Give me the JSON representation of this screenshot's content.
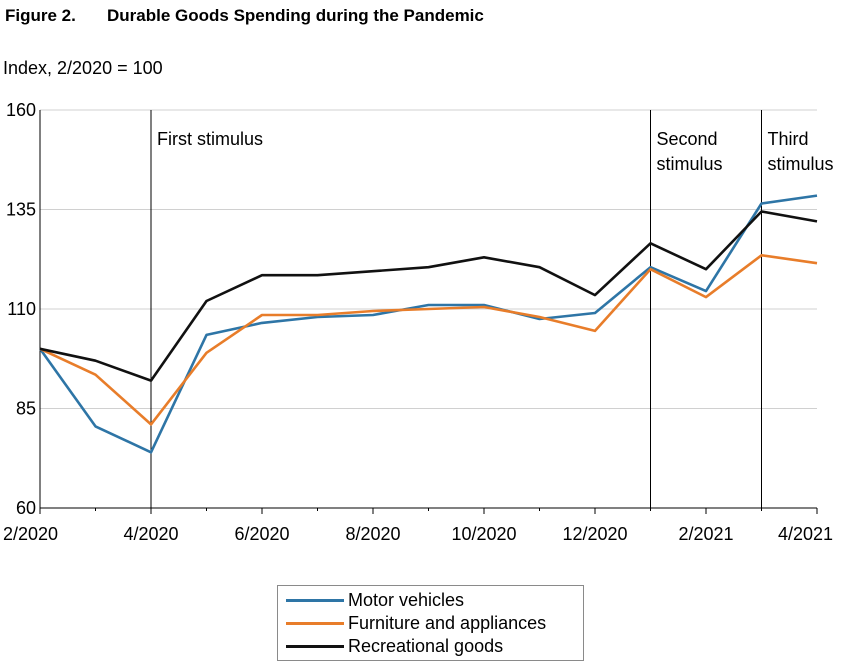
{
  "figure": {
    "number": "Figure 2.",
    "title": "Durable Goods Spending during the Pandemic",
    "unit_label": "Index, 2/2020 = 100"
  },
  "chart_data": {
    "type": "line",
    "title": "Durable Goods Spending during the Pandemic",
    "ylabel": "Index, 2/2020 = 100",
    "xlabel": "",
    "ylim": [
      60,
      160
    ],
    "yticks": [
      60,
      85,
      110,
      135,
      160
    ],
    "grid": "horizontal",
    "x": [
      "2/2020",
      "3/2020",
      "4/2020",
      "5/2020",
      "6/2020",
      "7/2020",
      "8/2020",
      "9/2020",
      "10/2020",
      "11/2020",
      "12/2020",
      "1/2021",
      "2/2021",
      "3/2021",
      "4/2021"
    ],
    "xtick_labels": [
      "2/2020",
      "4/2020",
      "6/2020",
      "8/2020",
      "10/2020",
      "12/2020",
      "2/2021",
      "4/2021"
    ],
    "series": [
      {
        "name": "Motor vehicles",
        "color": "#2e75a6",
        "values": [
          100,
          80.5,
          74,
          103.5,
          106.5,
          108,
          108.5,
          111,
          111,
          107.5,
          109,
          120.5,
          114.5,
          136.5,
          138.5
        ]
      },
      {
        "name": "Furniture and appliances",
        "color": "#e87d2a",
        "values": [
          100,
          93.5,
          81,
          99,
          108.5,
          108.5,
          109.5,
          110,
          110.5,
          108,
          104.5,
          120,
          113,
          123.5,
          121.5
        ]
      },
      {
        "name": "Recreational goods",
        "color": "#111111",
        "values": [
          100,
          97,
          92,
          112,
          118.5,
          118.5,
          119.5,
          120.5,
          123,
          120.5,
          113.5,
          126.5,
          120,
          134.5,
          132
        ]
      }
    ],
    "events": [
      {
        "x": "4/2020",
        "lines": [
          "First stimulus"
        ]
      },
      {
        "x": "1/2021",
        "lines": [
          "Second",
          "stimulus"
        ]
      },
      {
        "x": "3/2021",
        "lines": [
          "Third",
          "stimulus"
        ]
      }
    ],
    "legend": {
      "placement": "bottom-center"
    }
  }
}
